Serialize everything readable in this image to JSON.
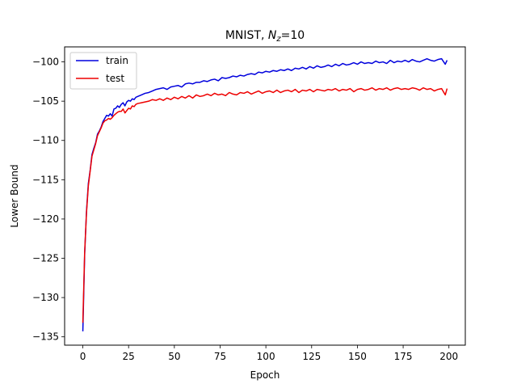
{
  "chart_data": {
    "type": "line",
    "title": "MNIST, ",
    "title_math": {
      "base": "N",
      "sub": "z",
      "rest": "=10"
    },
    "xlabel": "Epoch",
    "ylabel": "Lower Bound",
    "xlim": [
      -9.95,
      208.95
    ],
    "ylim": [
      -136.06,
      -98.09
    ],
    "xticks": [
      0,
      25,
      50,
      75,
      100,
      125,
      150,
      175,
      200
    ],
    "yticks": [
      -135,
      -130,
      -125,
      -120,
      -115,
      -110,
      -105,
      -100
    ],
    "legend_position": "upper-left",
    "grid": false,
    "series": [
      {
        "name": "train",
        "color": "#0000dd",
        "x": [
          0,
          1,
          2,
          3,
          4,
          5,
          6,
          7,
          8,
          9,
          10,
          11,
          12,
          13,
          14,
          15,
          16,
          17,
          18,
          19,
          20,
          21,
          22,
          23,
          24,
          25,
          26,
          27,
          28,
          29,
          30,
          32,
          34,
          36,
          38,
          40,
          42,
          44,
          46,
          48,
          50,
          52,
          54,
          56,
          58,
          60,
          62,
          64,
          66,
          68,
          70,
          72,
          74,
          76,
          78,
          80,
          82,
          84,
          86,
          88,
          90,
          92,
          94,
          96,
          98,
          100,
          102,
          104,
          106,
          108,
          110,
          112,
          114,
          116,
          118,
          120,
          122,
          124,
          126,
          128,
          130,
          132,
          134,
          136,
          138,
          140,
          142,
          144,
          146,
          148,
          150,
          152,
          154,
          156,
          158,
          160,
          162,
          164,
          166,
          168,
          170,
          172,
          174,
          176,
          178,
          180,
          182,
          184,
          186,
          188,
          190,
          192,
          194,
          196,
          198,
          199
        ],
        "values": [
          -134.3,
          -124.5,
          -119.0,
          -115.5,
          -113.8,
          -111.8,
          -111.0,
          -110.3,
          -109.2,
          -108.8,
          -108.3,
          -107.6,
          -107.2,
          -106.8,
          -106.9,
          -106.6,
          -106.9,
          -106.0,
          -105.9,
          -105.6,
          -105.8,
          -105.4,
          -105.2,
          -105.6,
          -105.1,
          -104.9,
          -105.0,
          -104.7,
          -104.8,
          -104.5,
          -104.4,
          -104.2,
          -104.0,
          -103.9,
          -103.7,
          -103.5,
          -103.4,
          -103.3,
          -103.5,
          -103.2,
          -103.1,
          -103.0,
          -103.2,
          -102.8,
          -102.7,
          -102.8,
          -102.6,
          -102.6,
          -102.4,
          -102.5,
          -102.3,
          -102.2,
          -102.4,
          -102.0,
          -102.1,
          -102.0,
          -101.8,
          -101.9,
          -101.7,
          -101.8,
          -101.6,
          -101.5,
          -101.6,
          -101.3,
          -101.4,
          -101.2,
          -101.3,
          -101.1,
          -101.2,
          -101.0,
          -101.1,
          -100.9,
          -101.1,
          -100.8,
          -100.9,
          -100.7,
          -100.9,
          -100.6,
          -100.8,
          -100.5,
          -100.7,
          -100.6,
          -100.4,
          -100.6,
          -100.3,
          -100.5,
          -100.2,
          -100.4,
          -100.3,
          -100.1,
          -100.3,
          -100.0,
          -100.2,
          -100.1,
          -100.2,
          -99.9,
          -100.1,
          -100.0,
          -100.2,
          -99.8,
          -100.1,
          -99.9,
          -100.0,
          -99.8,
          -100.0,
          -99.7,
          -99.9,
          -100.0,
          -99.8,
          -99.6,
          -99.8,
          -99.9,
          -99.7,
          -99.6,
          -100.3,
          -99.8
        ]
      },
      {
        "name": "test",
        "color": "#ee0000",
        "x": [
          0,
          1,
          2,
          3,
          4,
          5,
          6,
          7,
          8,
          9,
          10,
          11,
          12,
          13,
          14,
          15,
          16,
          17,
          18,
          19,
          20,
          21,
          22,
          23,
          24,
          25,
          26,
          27,
          28,
          29,
          30,
          32,
          34,
          36,
          38,
          40,
          42,
          44,
          46,
          48,
          50,
          52,
          54,
          56,
          58,
          60,
          62,
          64,
          66,
          68,
          70,
          72,
          74,
          76,
          78,
          80,
          82,
          84,
          86,
          88,
          90,
          92,
          94,
          96,
          98,
          100,
          102,
          104,
          106,
          108,
          110,
          112,
          114,
          116,
          118,
          120,
          122,
          124,
          126,
          128,
          130,
          132,
          134,
          136,
          138,
          140,
          142,
          144,
          146,
          148,
          150,
          152,
          154,
          156,
          158,
          160,
          162,
          164,
          166,
          168,
          170,
          172,
          174,
          176,
          178,
          180,
          182,
          184,
          186,
          188,
          190,
          192,
          194,
          196,
          198,
          199
        ],
        "values": [
          -133.2,
          -124.2,
          -119.2,
          -115.8,
          -113.9,
          -112.0,
          -111.2,
          -110.4,
          -109.4,
          -108.9,
          -108.4,
          -107.8,
          -107.5,
          -107.4,
          -107.2,
          -107.3,
          -107.1,
          -106.8,
          -106.6,
          -106.4,
          -106.3,
          -106.3,
          -106.0,
          -106.5,
          -106.2,
          -105.9,
          -106.0,
          -105.6,
          -105.7,
          -105.4,
          -105.3,
          -105.2,
          -105.1,
          -105.0,
          -104.8,
          -104.9,
          -104.7,
          -104.9,
          -104.6,
          -104.8,
          -104.5,
          -104.7,
          -104.4,
          -104.6,
          -104.3,
          -104.6,
          -104.2,
          -104.4,
          -104.3,
          -104.1,
          -104.3,
          -104.0,
          -104.2,
          -104.1,
          -104.3,
          -103.9,
          -104.1,
          -104.2,
          -103.9,
          -104.0,
          -103.8,
          -104.1,
          -103.9,
          -103.7,
          -104.0,
          -103.8,
          -103.7,
          -103.9,
          -103.6,
          -103.9,
          -103.7,
          -103.6,
          -103.8,
          -103.5,
          -103.9,
          -103.6,
          -103.7,
          -103.5,
          -103.8,
          -103.5,
          -103.6,
          -103.7,
          -103.5,
          -103.6,
          -103.4,
          -103.7,
          -103.5,
          -103.6,
          -103.4,
          -103.8,
          -103.5,
          -103.4,
          -103.6,
          -103.5,
          -103.3,
          -103.6,
          -103.4,
          -103.5,
          -103.3,
          -103.6,
          -103.4,
          -103.3,
          -103.5,
          -103.4,
          -103.5,
          -103.3,
          -103.4,
          -103.6,
          -103.3,
          -103.5,
          -103.4,
          -103.7,
          -103.5,
          -103.4,
          -104.2,
          -103.4
        ]
      }
    ]
  }
}
